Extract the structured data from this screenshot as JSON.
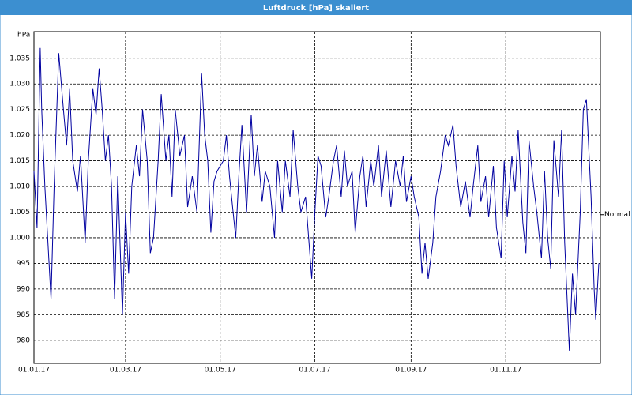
{
  "chart_data": {
    "type": "line",
    "title": "Luftdruck [hPa] skaliert",
    "y_unit": "hPa",
    "normal": {
      "value": 1004.5,
      "label": "Normal"
    },
    "color": "#0000a0",
    "grid": true,
    "xlim": [
      "2017-01-01",
      "2018-01-01"
    ],
    "xticks": [
      {
        "value": "2017-01-01",
        "label": "01.01.17"
      },
      {
        "value": "2017-03-01",
        "label": "01.03.17"
      },
      {
        "value": "2017-05-01",
        "label": "01.05.17"
      },
      {
        "value": "2017-07-01",
        "label": "01.07.17"
      },
      {
        "value": "2017-09-01",
        "label": "01.09.17"
      },
      {
        "value": "2017-11-01",
        "label": "01.11.17"
      }
    ],
    "ylim": [
      975.5,
      1040.2
    ],
    "yticks": [
      980,
      985,
      990,
      995,
      {
        "value": 1000,
        "label": "1.000"
      },
      {
        "value": 1005,
        "label": "1.005"
      },
      {
        "value": 1010,
        "label": "1.010"
      },
      {
        "value": 1015,
        "label": "1.015"
      },
      {
        "value": 1020,
        "label": "1.020"
      },
      {
        "value": 1025,
        "label": "1.025"
      },
      {
        "value": 1030,
        "label": "1.030"
      },
      {
        "value": 1035,
        "label": "1.035"
      }
    ],
    "x": [
      "2017-01-01",
      "2017-01-03",
      "2017-01-05",
      "2017-01-06",
      "2017-01-08",
      "2017-01-10",
      "2017-01-12",
      "2017-01-14",
      "2017-01-17",
      "2017-01-20",
      "2017-01-22",
      "2017-01-24",
      "2017-01-26",
      "2017-01-29",
      "2017-01-31",
      "2017-02-03",
      "2017-02-05",
      "2017-02-08",
      "2017-02-10",
      "2017-02-12",
      "2017-02-14",
      "2017-02-16",
      "2017-02-18",
      "2017-02-20",
      "2017-02-22",
      "2017-02-24",
      "2017-02-27",
      "2017-03-01",
      "2017-03-03",
      "2017-03-05",
      "2017-03-08",
      "2017-03-10",
      "2017-03-12",
      "2017-03-15",
      "2017-03-17",
      "2017-03-19",
      "2017-03-22",
      "2017-03-24",
      "2017-03-27",
      "2017-03-29",
      "2017-03-31",
      "2017-04-02",
      "2017-04-05",
      "2017-04-08",
      "2017-04-10",
      "2017-04-13",
      "2017-04-16",
      "2017-04-19",
      "2017-04-21",
      "2017-04-23",
      "2017-04-25",
      "2017-04-27",
      "2017-04-29",
      "2017-05-03",
      "2017-05-05",
      "2017-05-07",
      "2017-05-09",
      "2017-05-11",
      "2017-05-13",
      "2017-05-15",
      "2017-05-18",
      "2017-05-21",
      "2017-05-23",
      "2017-05-25",
      "2017-05-28",
      "2017-05-30",
      "2017-06-02",
      "2017-06-05",
      "2017-06-07",
      "2017-06-10",
      "2017-06-12",
      "2017-06-15",
      "2017-06-17",
      "2017-06-20",
      "2017-06-22",
      "2017-06-25",
      "2017-06-27",
      "2017-06-29",
      "2017-07-01",
      "2017-07-03",
      "2017-07-05",
      "2017-07-08",
      "2017-07-10",
      "2017-07-13",
      "2017-07-15",
      "2017-07-18",
      "2017-07-20",
      "2017-07-22",
      "2017-07-25",
      "2017-07-27",
      "2017-07-30",
      "2017-08-01",
      "2017-08-03",
      "2017-08-06",
      "2017-08-08",
      "2017-08-11",
      "2017-08-13",
      "2017-08-16",
      "2017-08-19",
      "2017-08-22",
      "2017-08-25",
      "2017-08-27",
      "2017-08-29",
      "2017-09-01",
      "2017-09-03",
      "2017-09-06",
      "2017-09-08",
      "2017-09-10",
      "2017-09-12",
      "2017-09-15",
      "2017-09-17",
      "2017-09-20",
      "2017-09-23",
      "2017-09-25",
      "2017-09-28",
      "2017-09-30",
      "2017-10-03",
      "2017-10-06",
      "2017-10-09",
      "2017-10-11",
      "2017-10-14",
      "2017-10-16",
      "2017-10-19",
      "2017-10-21",
      "2017-10-24",
      "2017-10-26",
      "2017-10-29",
      "2017-10-31",
      "2017-11-02",
      "2017-11-05",
      "2017-11-07",
      "2017-11-09",
      "2017-11-12",
      "2017-11-14",
      "2017-11-16",
      "2017-11-19",
      "2017-11-21",
      "2017-11-24",
      "2017-11-26",
      "2017-11-28",
      "2017-11-30",
      "2017-12-02",
      "2017-12-05",
      "2017-12-07",
      "2017-12-09",
      "2017-12-12",
      "2017-12-14",
      "2017-12-16",
      "2017-12-19",
      "2017-12-21",
      "2017-12-23",
      "2017-12-26",
      "2017-12-28",
      "2017-12-29",
      "2017-12-31"
    ],
    "values": [
      1013,
      1002,
      1037,
      1025,
      1010,
      999,
      988,
      1010,
      1036,
      1025,
      1018,
      1029,
      1015,
      1009,
      1016,
      999,
      1015,
      1029,
      1024,
      1033,
      1025,
      1015,
      1020,
      1010,
      988,
      1012,
      985,
      1005,
      993,
      1010,
      1018,
      1012,
      1025,
      1015,
      997,
      1000,
      1015,
      1028,
      1015,
      1020,
      1008,
      1025,
      1016,
      1020,
      1006,
      1012,
      1005,
      1032,
      1020,
      1015,
      1001,
      1011,
      1013,
      1015,
      1020,
      1012,
      1006,
      1000,
      1012,
      1022,
      1005,
      1024,
      1012,
      1018,
      1007,
      1013,
      1010,
      1000,
      1015,
      1005,
      1015,
      1008,
      1021,
      1010,
      1005,
      1008,
      1000,
      992,
      1005,
      1016,
      1014,
      1004,
      1008,
      1015,
      1018,
      1008,
      1017,
      1010,
      1013,
      1001,
      1012,
      1016,
      1006,
      1015,
      1010,
      1018,
      1008,
      1017,
      1006,
      1015,
      1010,
      1016,
      1007,
      1012,
      1008,
      1004,
      993,
      999,
      992,
      999,
      1008,
      1013,
      1020,
      1018,
      1022,
      1014,
      1006,
      1011,
      1004,
      1010,
      1018,
      1007,
      1012,
      1004,
      1014,
      1002,
      996,
      1015,
      1004,
      1016,
      1009,
      1021,
      1003,
      997,
      1019,
      1010,
      1005,
      996,
      1013,
      1000,
      994,
      1019,
      1008,
      1021,
      999,
      978,
      993,
      985,
      1005,
      1025,
      1027,
      1008,
      990,
      984,
      995
    ]
  }
}
